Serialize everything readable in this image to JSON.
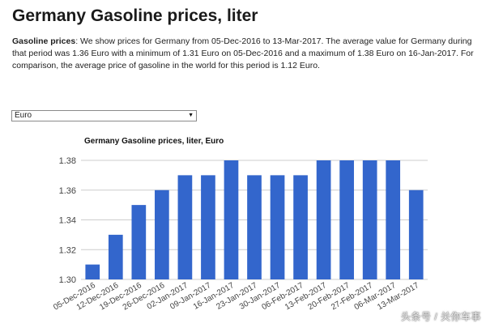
{
  "page": {
    "title": "Germany Gasoline prices, liter",
    "intro_label": "Gasoline prices",
    "intro_text": ": We show prices for Germany from 05-Dec-2016 to 13-Mar-2017. The average value for Germany during that period was 1.36 Euro with a minimum of 1.31 Euro on 05-Dec-2016 and a maximum of 1.38 Euro on 16-Jan-2017. For comparison, the average price of gasoline in the world for this period is 1.12 Euro.",
    "currency_selected": "Euro",
    "watermark": "头条号 / 关你车事"
  },
  "colors": {
    "bar": "#3366cc",
    "grid": "#cccccc",
    "axis_text": "#444444"
  },
  "chart_data": {
    "type": "bar",
    "title": "Germany Gasoline prices, liter, Euro",
    "xlabel": "",
    "ylabel": "",
    "categories": [
      "05-Dec-2016",
      "12-Dec-2016",
      "19-Dec-2016",
      "26-Dec-2016",
      "02-Jan-2017",
      "09-Jan-2017",
      "16-Jan-2017",
      "23-Jan-2017",
      "30-Jan-2017",
      "06-Feb-2017",
      "13-Feb-2017",
      "20-Feb-2017",
      "27-Feb-2017",
      "06-Mar-2017",
      "13-Mar-2017"
    ],
    "values": [
      1.31,
      1.33,
      1.35,
      1.36,
      1.37,
      1.37,
      1.38,
      1.37,
      1.37,
      1.37,
      1.38,
      1.38,
      1.38,
      1.38,
      1.36
    ],
    "ylim": [
      1.3,
      1.38
    ],
    "yticks": [
      "1.30",
      "1.32",
      "1.34",
      "1.36",
      "1.38"
    ],
    "grid": true,
    "legend": "none"
  }
}
